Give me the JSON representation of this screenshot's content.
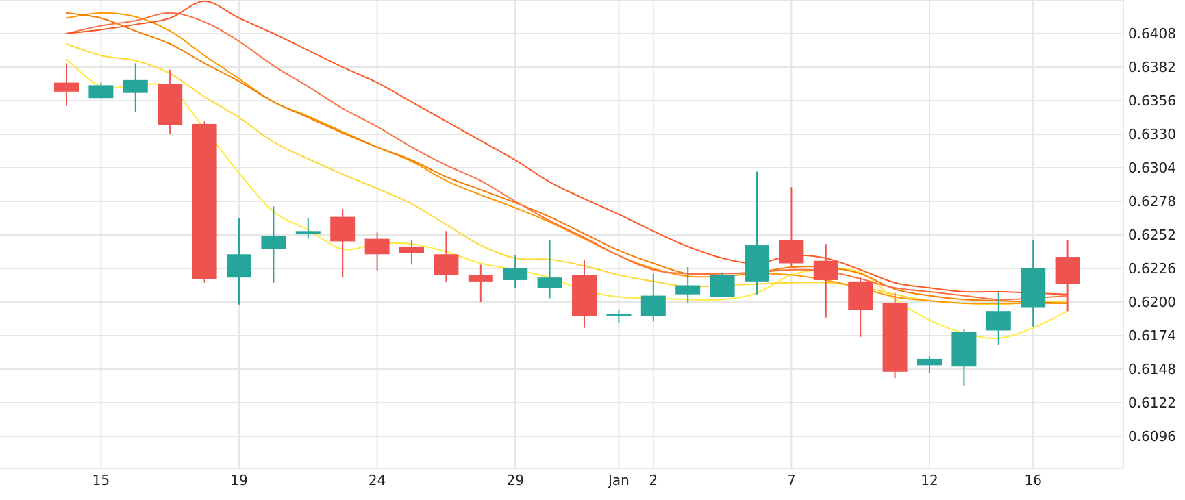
{
  "chart_data": {
    "type": "candlestick",
    "x_tick_labels": [
      {
        "label": "15",
        "index": 1
      },
      {
        "label": "19",
        "index": 5
      },
      {
        "label": "24",
        "index": 9
      },
      {
        "label": "29",
        "index": 13
      },
      {
        "label": "Jan",
        "index": 16
      },
      {
        "label": "2",
        "index": 17
      },
      {
        "label": "7",
        "index": 21
      },
      {
        "label": "12",
        "index": 25
      },
      {
        "label": "16",
        "index": 28
      }
    ],
    "y_ticks": [
      "0.6096",
      "0.6122",
      "0.6148",
      "0.6174",
      "0.6200",
      "0.6226",
      "0.6252",
      "0.6278",
      "0.6304",
      "0.6330",
      "0.6356",
      "0.6382",
      "0.6408"
    ],
    "ylim": [
      0.6075,
      0.643
    ],
    "grid": true,
    "colors": {
      "up": "#26a69a",
      "down": "#ef5350"
    },
    "candles": [
      {
        "o": 0.637,
        "h": 0.6385,
        "l": 0.6352,
        "c": 0.6363
      },
      {
        "o": 0.6358,
        "h": 0.637,
        "l": 0.6358,
        "c": 0.6368
      },
      {
        "o": 0.6362,
        "h": 0.6385,
        "l": 0.6347,
        "c": 0.6372
      },
      {
        "o": 0.6369,
        "h": 0.638,
        "l": 0.633,
        "c": 0.6337
      },
      {
        "o": 0.6338,
        "h": 0.634,
        "l": 0.6215,
        "c": 0.6218
      },
      {
        "o": 0.6219,
        "h": 0.6265,
        "l": 0.6198,
        "c": 0.6237
      },
      {
        "o": 0.6241,
        "h": 0.6274,
        "l": 0.6215,
        "c": 0.6251
      },
      {
        "o": 0.6253,
        "h": 0.6265,
        "l": 0.6249,
        "c": 0.6255
      },
      {
        "o": 0.6266,
        "h": 0.6272,
        "l": 0.6219,
        "c": 0.6247
      },
      {
        "o": 0.6249,
        "h": 0.6254,
        "l": 0.6224,
        "c": 0.6237
      },
      {
        "o": 0.6243,
        "h": 0.6248,
        "l": 0.6229,
        "c": 0.6238
      },
      {
        "o": 0.6237,
        "h": 0.6255,
        "l": 0.6216,
        "c": 0.6221
      },
      {
        "o": 0.6221,
        "h": 0.6229,
        "l": 0.62,
        "c": 0.6216
      },
      {
        "o": 0.6217,
        "h": 0.6236,
        "l": 0.6211,
        "c": 0.6226
      },
      {
        "o": 0.6211,
        "h": 0.6248,
        "l": 0.6203,
        "c": 0.6219
      },
      {
        "o": 0.6221,
        "h": 0.6233,
        "l": 0.618,
        "c": 0.6189
      },
      {
        "o": 0.619,
        "h": 0.6194,
        "l": 0.6184,
        "c": 0.6191
      },
      {
        "o": 0.6189,
        "h": 0.6222,
        "l": 0.6185,
        "c": 0.6205
      },
      {
        "o": 0.6206,
        "h": 0.6227,
        "l": 0.6199,
        "c": 0.6213
      },
      {
        "o": 0.6204,
        "h": 0.6223,
        "l": 0.6204,
        "c": 0.6221
      },
      {
        "o": 0.6216,
        "h": 0.6301,
        "l": 0.6206,
        "c": 0.6244
      },
      {
        "o": 0.6248,
        "h": 0.6289,
        "l": 0.6228,
        "c": 0.623
      },
      {
        "o": 0.6232,
        "h": 0.6245,
        "l": 0.6188,
        "c": 0.6217
      },
      {
        "o": 0.6216,
        "h": 0.6219,
        "l": 0.6173,
        "c": 0.6194
      },
      {
        "o": 0.6199,
        "h": 0.6207,
        "l": 0.6141,
        "c": 0.6146
      },
      {
        "o": 0.6151,
        "h": 0.6158,
        "l": 0.6145,
        "c": 0.6156
      },
      {
        "o": 0.615,
        "h": 0.6179,
        "l": 0.6135,
        "c": 0.6177
      },
      {
        "o": 0.6178,
        "h": 0.6208,
        "l": 0.6167,
        "c": 0.6193
      },
      {
        "o": 0.6196,
        "h": 0.6248,
        "l": 0.6181,
        "c": 0.6226
      },
      {
        "o": 0.6235,
        "h": 0.6248,
        "l": 0.6193,
        "c": 0.6214
      }
    ],
    "moving_averages": [
      {
        "color": "#ffeb3b",
        "points": [
          [
            0,
            0.6388
          ],
          [
            1,
            0.6367
          ],
          [
            2,
            0.6368
          ],
          [
            3,
            0.6366
          ],
          [
            4,
            0.6334
          ],
          [
            5,
            0.63
          ],
          [
            6,
            0.627
          ],
          [
            7,
            0.6256
          ],
          [
            8,
            0.6241
          ],
          [
            9,
            0.6245
          ],
          [
            10,
            0.6245
          ],
          [
            11,
            0.6239
          ],
          [
            12,
            0.623
          ],
          [
            13,
            0.6225
          ],
          [
            14,
            0.6219
          ],
          [
            15,
            0.6209
          ],
          [
            16,
            0.6204
          ],
          [
            17,
            0.6203
          ],
          [
            18,
            0.6202
          ],
          [
            19,
            0.6202
          ],
          [
            20,
            0.6207
          ],
          [
            21,
            0.6221
          ],
          [
            22,
            0.6225
          ],
          [
            23,
            0.6223
          ],
          [
            24,
            0.6202
          ],
          [
            25,
            0.6186
          ],
          [
            26,
            0.6176
          ],
          [
            27,
            0.6172
          ],
          [
            28,
            0.618
          ],
          [
            29,
            0.6193
          ]
        ]
      },
      {
        "color": "#fdd835",
        "points": [
          [
            0,
            0.64
          ],
          [
            1,
            0.6391
          ],
          [
            2,
            0.6387
          ],
          [
            3,
            0.6377
          ],
          [
            4,
            0.6359
          ],
          [
            5,
            0.6343
          ],
          [
            6,
            0.6324
          ],
          [
            7,
            0.6311
          ],
          [
            8,
            0.6299
          ],
          [
            9,
            0.6288
          ],
          [
            10,
            0.6276
          ],
          [
            11,
            0.626
          ],
          [
            12,
            0.6244
          ],
          [
            13,
            0.6234
          ],
          [
            14,
            0.6233
          ],
          [
            15,
            0.6228
          ],
          [
            16,
            0.6221
          ],
          [
            17,
            0.6216
          ],
          [
            18,
            0.6212
          ],
          [
            19,
            0.6213
          ],
          [
            20,
            0.6214
          ],
          [
            21,
            0.6215
          ],
          [
            22,
            0.6215
          ],
          [
            23,
            0.6212
          ],
          [
            24,
            0.6206
          ],
          [
            25,
            0.6201
          ],
          [
            26,
            0.6199
          ],
          [
            27,
            0.6198
          ],
          [
            28,
            0.62
          ],
          [
            29,
            0.62
          ]
        ]
      },
      {
        "color": "#ff9800",
        "points": [
          [
            0,
            0.642
          ],
          [
            1,
            0.6424
          ],
          [
            2,
            0.6421
          ],
          [
            3,
            0.641
          ],
          [
            4,
            0.6391
          ],
          [
            5,
            0.6373
          ],
          [
            6,
            0.6355
          ],
          [
            7,
            0.6344
          ],
          [
            8,
            0.6332
          ],
          [
            9,
            0.632
          ],
          [
            10,
            0.6309
          ],
          [
            11,
            0.6294
          ],
          [
            12,
            0.6283
          ],
          [
            13,
            0.6273
          ],
          [
            14,
            0.6262
          ],
          [
            15,
            0.6249
          ],
          [
            16,
            0.6236
          ],
          [
            17,
            0.6226
          ],
          [
            18,
            0.622
          ],
          [
            19,
            0.622
          ],
          [
            20,
            0.6222
          ],
          [
            21,
            0.6221
          ],
          [
            22,
            0.6217
          ],
          [
            23,
            0.6211
          ],
          [
            24,
            0.6204
          ],
          [
            25,
            0.6201
          ],
          [
            26,
            0.6199
          ],
          [
            27,
            0.6199
          ],
          [
            28,
            0.6199
          ],
          [
            29,
            0.6199
          ]
        ]
      },
      {
        "color": "#f57c00",
        "points": [
          [
            0,
            0.6424
          ],
          [
            1,
            0.642
          ],
          [
            2,
            0.641
          ],
          [
            3,
            0.64
          ],
          [
            4,
            0.6385
          ],
          [
            5,
            0.6371
          ],
          [
            6,
            0.6355
          ],
          [
            7,
            0.6343
          ],
          [
            8,
            0.6331
          ],
          [
            9,
            0.632
          ],
          [
            10,
            0.631
          ],
          [
            11,
            0.6297
          ],
          [
            12,
            0.6287
          ],
          [
            13,
            0.6277
          ],
          [
            14,
            0.6266
          ],
          [
            15,
            0.6253
          ],
          [
            16,
            0.624
          ],
          [
            17,
            0.623
          ],
          [
            18,
            0.6222
          ],
          [
            19,
            0.6222
          ],
          [
            20,
            0.6223
          ],
          [
            21,
            0.6227
          ],
          [
            22,
            0.6227
          ],
          [
            23,
            0.6222
          ],
          [
            24,
            0.621
          ],
          [
            25,
            0.6205
          ],
          [
            26,
            0.6202
          ],
          [
            27,
            0.6201
          ],
          [
            28,
            0.62
          ],
          [
            29,
            0.6199
          ]
        ]
      },
      {
        "color": "#ff7043",
        "points": [
          [
            0,
            0.6408
          ],
          [
            1,
            0.6414
          ],
          [
            2,
            0.6418
          ],
          [
            3,
            0.6424
          ],
          [
            4,
            0.6417
          ],
          [
            5,
            0.6402
          ],
          [
            6,
            0.6383
          ],
          [
            7,
            0.6367
          ],
          [
            8,
            0.635
          ],
          [
            9,
            0.6336
          ],
          [
            10,
            0.632
          ],
          [
            11,
            0.6306
          ],
          [
            12,
            0.6294
          ],
          [
            13,
            0.6278
          ],
          [
            14,
            0.6263
          ],
          [
            15,
            0.625
          ],
          [
            16,
            0.6236
          ],
          [
            17,
            0.6225
          ],
          [
            18,
            0.6222
          ],
          [
            19,
            0.6222
          ],
          [
            20,
            0.6223
          ],
          [
            21,
            0.6225
          ],
          [
            22,
            0.6224
          ],
          [
            23,
            0.6218
          ],
          [
            24,
            0.6211
          ],
          [
            25,
            0.6208
          ],
          [
            26,
            0.6205
          ],
          [
            27,
            0.6202
          ],
          [
            28,
            0.6203
          ],
          [
            29,
            0.6205
          ]
        ]
      },
      {
        "color": "#ff5722",
        "points": [
          [
            0,
            0.6408
          ],
          [
            1,
            0.6411
          ],
          [
            2,
            0.6415
          ],
          [
            3,
            0.642
          ],
          [
            4,
            0.6433
          ],
          [
            5,
            0.642
          ],
          [
            6,
            0.6408
          ],
          [
            7,
            0.6395
          ],
          [
            8,
            0.6382
          ],
          [
            9,
            0.637
          ],
          [
            10,
            0.6355
          ],
          [
            11,
            0.634
          ],
          [
            12,
            0.6325
          ],
          [
            13,
            0.631
          ],
          [
            14,
            0.6293
          ],
          [
            15,
            0.628
          ],
          [
            16,
            0.6268
          ],
          [
            17,
            0.6255
          ],
          [
            18,
            0.6243
          ],
          [
            19,
            0.6234
          ],
          [
            20,
            0.623
          ],
          [
            21,
            0.6236
          ],
          [
            22,
            0.6234
          ],
          [
            23,
            0.6225
          ],
          [
            24,
            0.6215
          ],
          [
            25,
            0.6211
          ],
          [
            26,
            0.6208
          ],
          [
            27,
            0.6208
          ],
          [
            28,
            0.6207
          ],
          [
            29,
            0.6206
          ]
        ]
      }
    ]
  }
}
